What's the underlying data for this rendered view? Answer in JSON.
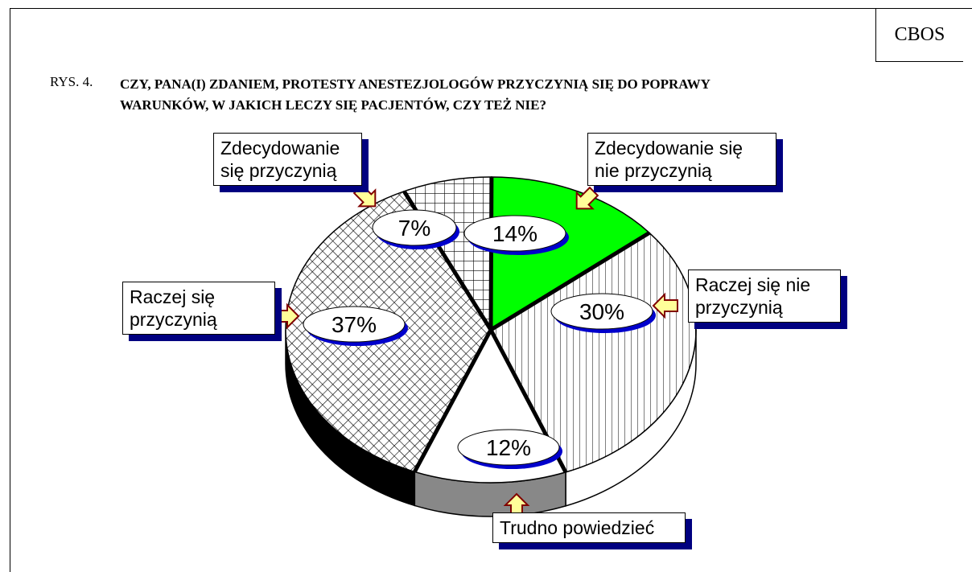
{
  "chart_data": {
    "type": "pie",
    "source": "CBOS",
    "figure_label": "RYS. 4.",
    "title": "CZY, PANA(I) ZDANIEM, PROTESTY ANESTEZJOLOGÓW PRZYCZYNIĄ SIĘ DO POPRAWY WARUNKÓW, W JAKICH LECZY SIĘ PACJENTÓW, CZY TEŻ NIE?",
    "categories": [
      "Zdecydowanie się przyczynią",
      "Zdecydowanie się nie przyczynią",
      "Raczej się nie przyczynią",
      "Trudno powiedzieć",
      "Raczej się przyczynią"
    ],
    "values": [
      7,
      14,
      30,
      12,
      37
    ],
    "value_labels": [
      "7%",
      "14%",
      "30%",
      "12%",
      "37%"
    ],
    "colors": [
      "#ffffff",
      "#00ff00",
      "#ffffff",
      "#ffffff",
      "#ffffff"
    ]
  }
}
